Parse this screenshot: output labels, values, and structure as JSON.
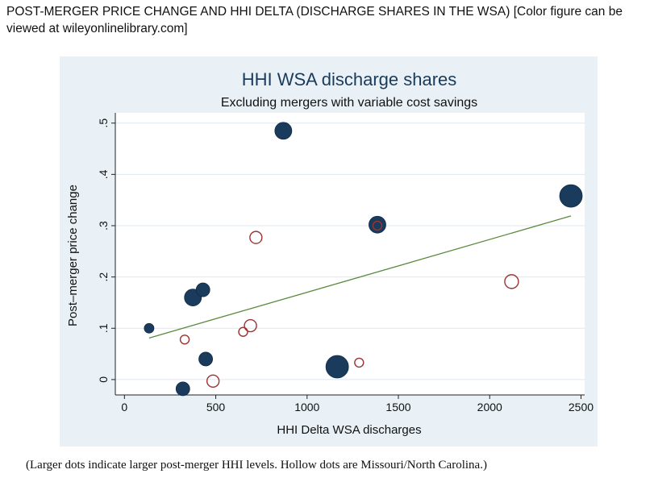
{
  "figure": {
    "title": "POST-MERGER PRICE CHANGE AND HHI DELTA (DISCHARGE SHARES IN THE WSA)  [Color figure can be viewed at wileyonlinelibrary.com]",
    "caption": "(Larger dots indicate larger post-merger HHI levels. Hollow dots are Missouri/North Carolina.)"
  },
  "colors": {
    "panel_bg": "#e9f1f6",
    "plot_bg": "#ffffff",
    "grid": "#dde8ef",
    "title": "#1a3b5c",
    "solid_dot": "#1a3b5c",
    "hollow_dot": "#9b3333",
    "fit_line": "#5b8a3c"
  },
  "chart_data": {
    "type": "scatter",
    "title": "HHI WSA discharge shares",
    "subtitle": "Excluding mergers with variable cost savings",
    "xlabel": "HHI Delta WSA discharges",
    "ylabel": "Post–merger price change",
    "xlim": [
      -50,
      2520
    ],
    "ylim": [
      -0.03,
      0.52
    ],
    "x_ticks": [
      0,
      500,
      1000,
      1500,
      2000,
      2500
    ],
    "x_tick_labels": [
      "0",
      "500",
      "1000",
      "1500",
      "2000",
      "2500"
    ],
    "y_ticks": [
      0,
      0.1,
      0.2,
      0.3,
      0.4,
      0.5
    ],
    "y_tick_labels": [
      "0",
      ".1",
      ".2",
      ".3",
      ".4",
      ".5"
    ],
    "grid": true,
    "series": [
      {
        "style": "solid",
        "points": [
          {
            "x": 135,
            "y": 0.1,
            "size": 1
          },
          {
            "x": 320,
            "y": -0.018,
            "size": 2
          },
          {
            "x": 375,
            "y": 0.16,
            "size": 3
          },
          {
            "x": 430,
            "y": 0.175,
            "size": 2
          },
          {
            "x": 445,
            "y": 0.04,
            "size": 2
          },
          {
            "x": 870,
            "y": 0.485,
            "size": 3
          },
          {
            "x": 1165,
            "y": 0.025,
            "size": 4
          },
          {
            "x": 1385,
            "y": 0.302,
            "size": 3
          },
          {
            "x": 2445,
            "y": 0.358,
            "size": 4
          }
        ]
      },
      {
        "style": "hollow",
        "points": [
          {
            "x": 330,
            "y": 0.078,
            "size": 1
          },
          {
            "x": 485,
            "y": -0.003,
            "size": 2
          },
          {
            "x": 650,
            "y": 0.093,
            "size": 1
          },
          {
            "x": 690,
            "y": 0.105,
            "size": 2
          },
          {
            "x": 720,
            "y": 0.277,
            "size": 2
          },
          {
            "x": 1285,
            "y": 0.033,
            "size": 1
          },
          {
            "x": 1385,
            "y": 0.3,
            "size": 1
          },
          {
            "x": 2120,
            "y": 0.191,
            "size": 3
          }
        ]
      }
    ],
    "fit_line": {
      "x": [
        135,
        2445
      ],
      "y": [
        0.081,
        0.319
      ]
    }
  }
}
